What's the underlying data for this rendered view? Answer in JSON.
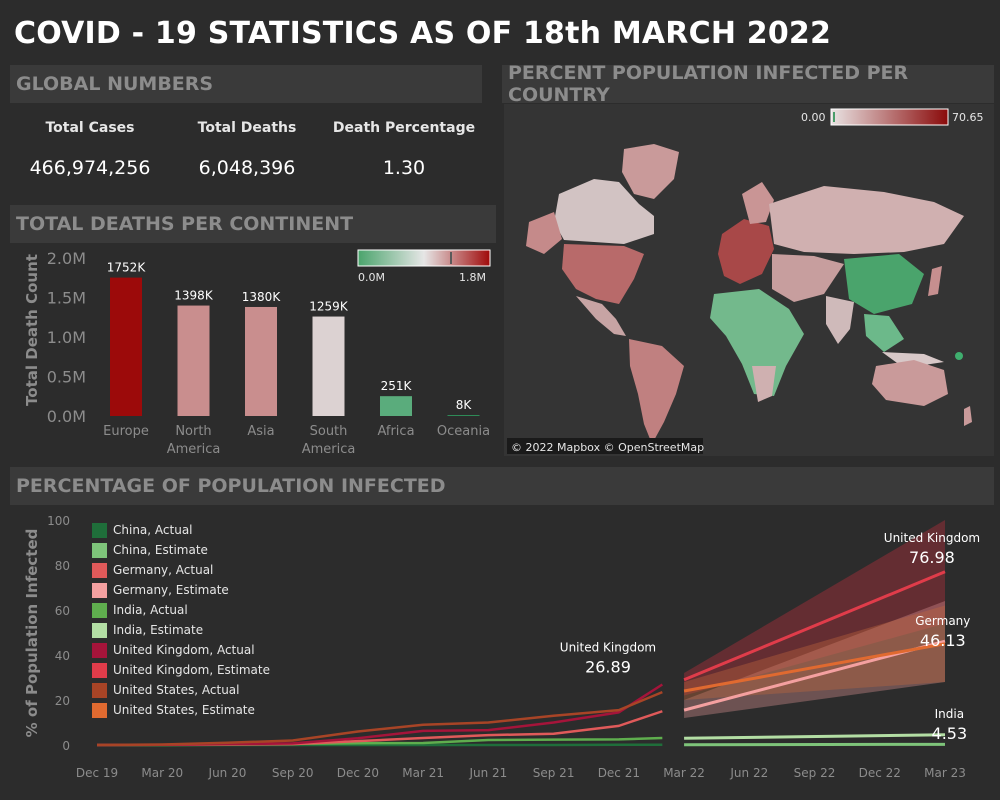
{
  "title": "COVID - 19 STATISTICS AS OF 18th MARCH 2022",
  "global": {
    "heading": "GLOBAL NUMBERS",
    "kpis": [
      {
        "label": "Total Cases",
        "value": "466,974,256"
      },
      {
        "label": "Total Deaths",
        "value": "6,048,396"
      },
      {
        "label": "Death Percentage",
        "value": "1.30"
      }
    ]
  },
  "map": {
    "heading": "PERCENT POPULATION INFECTED PER COUNTRY",
    "legend_min": "0.00",
    "legend_max": "70.65",
    "attribution": "© 2022 Mapbox © OpenStreetMap"
  },
  "continent": {
    "heading": "TOTAL DEATHS PER CONTINENT",
    "legend_min": "0.0M",
    "legend_max": "1.8M"
  },
  "infected": {
    "heading": "PERCENTAGE OF POPULATION INFECTED"
  },
  "chart_data": [
    {
      "type": "bar",
      "categories": [
        "Europe",
        "North America",
        "Asia",
        "South America",
        "Africa",
        "Oceania"
      ],
      "category_lines": [
        [
          "Europe"
        ],
        [
          "North",
          "America"
        ],
        [
          "Asia"
        ],
        [
          "South",
          "America"
        ],
        [
          "Africa"
        ],
        [
          "Oceania"
        ]
      ],
      "values": [
        1752,
        1398,
        1380,
        1259,
        251,
        8
      ],
      "value_labels": [
        "1752K",
        "1398K",
        "1380K",
        "1259K",
        "251K",
        "8K"
      ],
      "colors": [
        "#9c0a0a",
        "#c98e8e",
        "#c98e8e",
        "#dcd2d2",
        "#5aac7c",
        "#2e8b57"
      ],
      "title": "",
      "xlabel": "",
      "ylabel": "Total Death Count",
      "yticks": [
        "0.0M",
        "0.5M",
        "1.0M",
        "1.5M",
        "2.0M"
      ],
      "ylim": [
        0,
        2000
      ]
    },
    {
      "type": "line",
      "title": "",
      "xlabel": "",
      "ylabel": "% of Population Infected",
      "xticks": [
        "Dec 19",
        "Mar 20",
        "Jun 20",
        "Sep 20",
        "Dec 20",
        "Mar 21",
        "Jun 21",
        "Sep 21",
        "Dec 21",
        "Mar 22",
        "Jun 22",
        "Sep 22",
        "Dec 22",
        "Mar 23"
      ],
      "yticks": [
        "0",
        "20",
        "40",
        "60",
        "80",
        "100"
      ],
      "ylim": [
        0,
        100
      ],
      "legend": [
        {
          "name": "China, Actual",
          "color": "#1f6e3a"
        },
        {
          "name": "China, Estimate",
          "color": "#7ec47a"
        },
        {
          "name": "Germany, Actual",
          "color": "#e05a5a"
        },
        {
          "name": "Germany, Estimate",
          "color": "#f4a0a0"
        },
        {
          "name": "India, Actual",
          "color": "#5fae4e"
        },
        {
          "name": "India, Estimate",
          "color": "#b3dea4"
        },
        {
          "name": "United Kingdom, Actual",
          "color": "#a5143a"
        },
        {
          "name": "United Kingdom, Estimate",
          "color": "#e03c4a"
        },
        {
          "name": "United States, Actual",
          "color": "#a84426"
        },
        {
          "name": "United States, Estimate",
          "color": "#e06a30"
        }
      ],
      "series": [
        {
          "name": "China, Actual",
          "color": "#1f6e3a",
          "x": [
            0,
            3,
            6,
            9,
            12,
            15,
            18,
            21,
            24,
            26
          ],
          "values": [
            0,
            0,
            0,
            0,
            0,
            0,
            0,
            0,
            0.1,
            0.1
          ]
        },
        {
          "name": "India, Actual",
          "color": "#5fae4e",
          "x": [
            0,
            3,
            6,
            9,
            12,
            15,
            18,
            21,
            24,
            26
          ],
          "values": [
            0,
            0,
            0.1,
            0.5,
            0.8,
            0.9,
            2.2,
            2.4,
            2.5,
            3.1
          ]
        },
        {
          "name": "Germany, Actual",
          "color": "#e05a5a",
          "x": [
            0,
            3,
            6,
            9,
            12,
            15,
            18,
            21,
            24,
            26
          ],
          "values": [
            0,
            0.1,
            0.2,
            0.4,
            1.7,
            3.1,
            4.4,
            5.0,
            8.5,
            15.0
          ]
        },
        {
          "name": "United Kingdom, Actual",
          "color": "#a5143a",
          "x": [
            0,
            3,
            6,
            9,
            12,
            15,
            18,
            21,
            24,
            26
          ],
          "values": [
            0,
            0.1,
            0.4,
            0.7,
            3.0,
            6.3,
            6.6,
            10.0,
            14.5,
            26.89
          ]
        },
        {
          "name": "United States, Actual",
          "color": "#a84426",
          "x": [
            0,
            3,
            6,
            9,
            12,
            15,
            18,
            21,
            24,
            26
          ],
          "values": [
            0,
            0.2,
            1.0,
            2.0,
            6.0,
            9.0,
            10.0,
            13.0,
            15.5,
            23.5
          ]
        },
        {
          "name": "China, Estimate",
          "color": "#7ec47a",
          "x": [
            27,
            39
          ],
          "values": [
            0.1,
            0.3
          ]
        },
        {
          "name": "India, Estimate",
          "color": "#b3dea4",
          "x": [
            27,
            39
          ],
          "values": [
            3.0,
            4.53
          ]
        },
        {
          "name": "Germany, Estimate",
          "color": "#f4a0a0",
          "x": [
            27,
            39
          ],
          "values": [
            15.5,
            46.13
          ]
        },
        {
          "name": "United States, Estimate",
          "color": "#e06a30",
          "x": [
            27,
            39
          ],
          "values": [
            24.0,
            45.0
          ]
        },
        {
          "name": "United Kingdom, Estimate",
          "color": "#e03c4a",
          "x": [
            27,
            39
          ],
          "values": [
            29.0,
            76.98
          ]
        }
      ],
      "bands": [
        {
          "name": "United Kingdom",
          "color": "#c0303c",
          "x": [
            27,
            39
          ],
          "lower": [
            22,
            54
          ],
          "upper": [
            32,
            100
          ]
        },
        {
          "name": "Germany",
          "color": "#d89090",
          "x": [
            27,
            39
          ],
          "lower": [
            12,
            28
          ],
          "upper": [
            20,
            64
          ]
        },
        {
          "name": "United States",
          "color": "#c26a3c",
          "x": [
            27,
            39
          ],
          "lower": [
            20,
            28
          ],
          "upper": [
            28,
            62
          ]
        }
      ],
      "annotations": [
        {
          "label": "United Kingdom",
          "value": "26.89",
          "x": 23.5,
          "y": 26.89
        },
        {
          "label": "United Kingdom",
          "value": "76.98",
          "x": 38.4,
          "y": 76.98
        },
        {
          "label": "Germany",
          "value": "46.13",
          "x": 38.9,
          "y": 46.13
        },
        {
          "label": "India",
          "value": "4.53",
          "x": 39.2,
          "y": 4.53
        }
      ]
    }
  ]
}
